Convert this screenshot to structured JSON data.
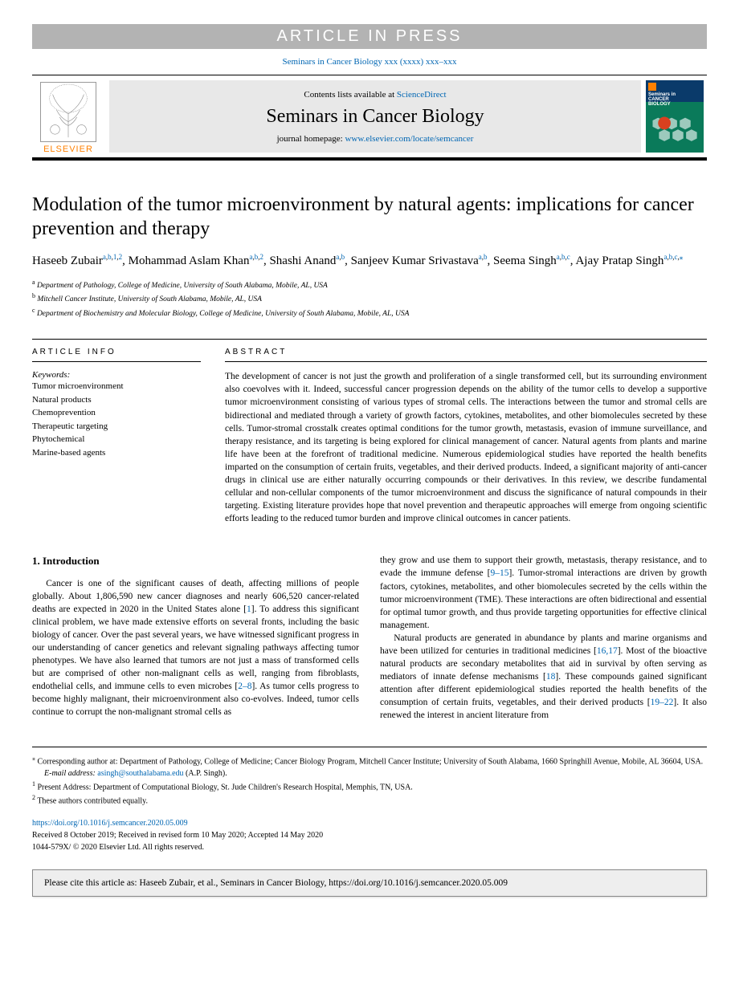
{
  "banner": "ARTICLE IN PRESS",
  "topCitation": {
    "journal": "Seminars in Cancer Biology",
    "issue": "xxx (xxxx) xxx–xxx"
  },
  "header": {
    "contentsPrefix": "Contents lists available at ",
    "contentsLink": "ScienceDirect",
    "journalName": "Seminars in Cancer Biology",
    "homepagePrefix": "journal homepage: ",
    "homepageUrl": "www.elsevier.com/locate/semcancer",
    "elsevier": "ELSEVIER",
    "cover": {
      "line1": "Seminars in",
      "line2": "CANCER",
      "line3": "BIOLOGY"
    }
  },
  "title": "Modulation of the tumor microenvironment by natural agents: implications for cancer prevention and therapy",
  "authors": [
    {
      "name": "Haseeb Zubair",
      "marks": [
        "a",
        "b",
        "1",
        "2"
      ]
    },
    {
      "name": "Mohammad Aslam Khan",
      "marks": [
        "a",
        "b",
        "2"
      ]
    },
    {
      "name": "Shashi Anand",
      "marks": [
        "a",
        "b"
      ]
    },
    {
      "name": "Sanjeev Kumar Srivastava",
      "marks": [
        "a",
        "b"
      ]
    },
    {
      "name": "Seema Singh",
      "marks": [
        "a",
        "b",
        "c"
      ]
    },
    {
      "name": "Ajay Pratap Singh",
      "marks": [
        "a",
        "b",
        "c",
        "⁎"
      ]
    }
  ],
  "affiliations": [
    {
      "mark": "a",
      "text": "Department of Pathology, College of Medicine, University of South Alabama, Mobile, AL, USA"
    },
    {
      "mark": "b",
      "text": "Mitchell Cancer Institute, University of South Alabama, Mobile, AL, USA"
    },
    {
      "mark": "c",
      "text": "Department of Biochemistry and Molecular Biology, College of Medicine, University of South Alabama, Mobile, AL, USA"
    }
  ],
  "infoHead": "ARTICLE INFO",
  "absHead": "ABSTRACT",
  "keywordsLabel": "Keywords:",
  "keywords": [
    "Tumor microenvironment",
    "Natural products",
    "Chemoprevention",
    "Therapeutic targeting",
    "Phytochemical",
    "Marine-based agents"
  ],
  "abstract": "The development of cancer is not just the growth and proliferation of a single transformed cell, but its surrounding environment also coevolves with it. Indeed, successful cancer progression depends on the ability of the tumor cells to develop a supportive tumor microenvironment consisting of various types of stromal cells. The interactions between the tumor and stromal cells are bidirectional and mediated through a variety of growth factors, cytokines, metabolites, and other biomolecules secreted by these cells. Tumor-stromal crosstalk creates optimal conditions for the tumor growth, metastasis, evasion of immune surveillance, and therapy resistance, and its targeting is being explored for clinical management of cancer. Natural agents from plants and marine life have been at the forefront of traditional medicine. Numerous epidemiological studies have reported the health benefits imparted on the consumption of certain fruits, vegetables, and their derived products. Indeed, a significant majority of anti-cancer drugs in clinical use are either naturally occurring compounds or their derivatives. In this review, we describe fundamental cellular and non-cellular components of the tumor microenvironment and discuss the significance of natural compounds in their targeting. Existing literature provides hope that novel prevention and therapeutic approaches will emerge from ongoing scientific efforts leading to the reduced tumor burden and improve clinical outcomes in cancer patients.",
  "introHead": "1. Introduction",
  "introPara1a": "Cancer is one of the significant causes of death, affecting millions of people globally. About 1,806,590 new cancer diagnoses and nearly 606,520 cancer-related deaths are expected in 2020 in the United States alone [",
  "ref1": "1",
  "introPara1b": "]. To address this significant clinical problem, we have made extensive efforts on several fronts, including the basic biology of cancer. Over the past several years, we have witnessed significant progress in our understanding of cancer genetics and relevant signaling pathways affecting tumor phenotypes. We have also learned that tumors are not just a mass of transformed cells but are comprised of other non-malignant cells as well, ranging from fibroblasts, endothelial cells, and immune cells to even microbes [",
  "ref2_8": "2–8",
  "introPara1c": "]. As tumor cells progress to become highly malignant, their microenvironment also co-evolves. Indeed, tumor cells continue to corrupt the non-malignant stromal cells as",
  "col2a": "they grow and use them to support their growth, metastasis, therapy resistance, and to evade the immune defense [",
  "ref9_15": "9–15",
  "col2b": "]. Tumor-stromal interactions are driven by growth factors, cytokines, metabolites, and other biomolecules secreted by the cells within the tumor microenvironment (TME). These interactions are often bidirectional and essential for optimal tumor growth, and thus provide targeting opportunities for effective clinical management.",
  "col2p2a": "Natural products are generated in abundance by plants and marine organisms and have been utilized for centuries in traditional medicines [",
  "ref16_17": "16,17",
  "col2p2b": "]. Most of the bioactive natural products are secondary metabolites that aid in survival by often serving as mediators of innate defense mechanisms [",
  "ref18": "18",
  "col2p2c": "]. These compounds gained significant attention after different epidemiological studies reported the health benefits of the consumption of certain fruits, vegetables, and their derived products [",
  "ref19_22": "19–22",
  "col2p2d": "]. It also renewed the interest in ancient literature from",
  "footnotes": {
    "corr": "Corresponding author at: Department of Pathology, College of Medicine; Cancer Biology Program, Mitchell Cancer Institute; University of South Alabama, 1660 Springhill Avenue, Mobile, AL 36604, USA.",
    "emailLabel": "E-mail address: ",
    "email": "asingh@southalabama.edu",
    "emailSuffix": " (A.P. Singh).",
    "fn1": "Present Address: Department of Computational Biology, St. Jude Children's Research Hospital, Memphis, TN, USA.",
    "fn2": "These authors contributed equally."
  },
  "doi": "https://doi.org/10.1016/j.semcancer.2020.05.009",
  "received": "Received 8 October 2019; Received in revised form 10 May 2020; Accepted 14 May 2020",
  "copyright": "1044-579X/ © 2020 Elsevier Ltd. All rights reserved.",
  "citeBox": "Please cite this article as: Haseeb Zubair, et al., Seminars in Cancer Biology, https://doi.org/10.1016/j.semcancer.2020.05.009"
}
